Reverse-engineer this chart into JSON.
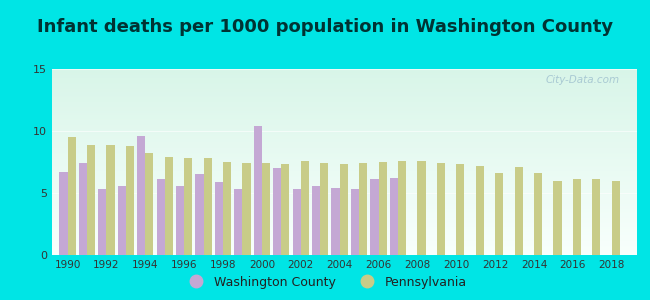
{
  "title": "Infant deaths per 1000 population in Washington County",
  "years": [
    1990,
    1991,
    1992,
    1993,
    1994,
    1995,
    1996,
    1997,
    1998,
    1999,
    2000,
    2001,
    2002,
    2003,
    2004,
    2005,
    2006,
    2007,
    2008,
    2009,
    2010,
    2011,
    2012,
    2013,
    2014,
    2015,
    2016,
    2017,
    2018
  ],
  "washington_county": [
    6.7,
    7.4,
    5.3,
    5.6,
    9.6,
    6.1,
    5.6,
    6.5,
    5.9,
    5.3,
    10.4,
    7.0,
    5.3,
    5.6,
    5.4,
    5.3,
    6.1,
    6.2,
    null,
    null,
    null,
    null,
    null,
    null,
    null,
    null,
    null,
    null,
    null
  ],
  "pennsylvania": [
    9.5,
    8.9,
    8.9,
    8.8,
    8.2,
    7.9,
    7.8,
    7.8,
    7.5,
    7.4,
    7.4,
    7.3,
    7.6,
    7.4,
    7.3,
    7.4,
    7.5,
    7.6,
    7.6,
    7.4,
    7.3,
    7.2,
    6.6,
    7.1,
    6.6,
    6.0,
    6.1,
    6.1,
    6.0
  ],
  "washington_county_color": "#c4a8d4",
  "pennsylvania_color": "#c8cc88",
  "fig_bg_color": "#00e5e5",
  "plot_bg_top": "#d8f5e8",
  "plot_bg_bottom": "#f8fffc",
  "title_color": "#003333",
  "title_fontsize": 13,
  "bar_width": 0.42,
  "ylim": [
    0,
    15
  ],
  "yticks": [
    0,
    5,
    10,
    15
  ],
  "xticks": [
    1990,
    1992,
    1994,
    1996,
    1998,
    2000,
    2002,
    2004,
    2006,
    2008,
    2010,
    2012,
    2014,
    2016,
    2018
  ],
  "watermark": "City-Data.com",
  "legend_wc_label": "Washington County",
  "legend_pa_label": "Pennsylvania"
}
